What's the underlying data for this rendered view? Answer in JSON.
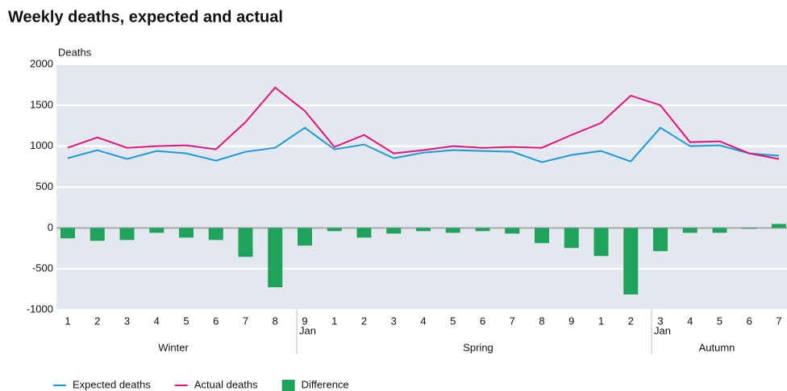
{
  "chart_data": {
    "type": "line-bar",
    "title": "Weekly deaths, expected and actual",
    "unit_label": "Deaths",
    "categories": [
      "1",
      "2",
      "3",
      "4",
      "5",
      "6",
      "7",
      "8",
      "9",
      "1",
      "2",
      "3",
      "4",
      "5",
      "6",
      "7",
      "8",
      "9",
      "1",
      "2",
      "3",
      "4",
      "5",
      "6",
      "7"
    ],
    "group_labels": [
      "Winter",
      "Spring",
      "Autumn"
    ],
    "annotations": [
      "Jan",
      "Jan"
    ],
    "ylim": [
      -1000,
      2000
    ],
    "yticks": [
      -1000,
      -500,
      0,
      500,
      1000,
      1500,
      2000
    ],
    "grid": true,
    "series": [
      {
        "name": "Expected deaths",
        "color": "#1a9ad6",
        "kind": "line",
        "values": [
          853,
          951,
          843,
          941,
          912,
          823,
          931,
          980,
          1225,
          961,
          1020,
          853,
          921,
          951,
          941,
          931,
          804,
          892,
          941,
          813,
          1225,
          1000,
          1010,
          912,
          882
        ]
      },
      {
        "name": "Actual deaths",
        "color": "#e0157a",
        "kind": "line",
        "values": [
          980,
          1107,
          980,
          1000,
          1010,
          961,
          1294,
          1716,
          1431,
          990,
          1137,
          912,
          951,
          1000,
          980,
          990,
          980,
          1137,
          1284,
          1618,
          1500,
          1049,
          1059,
          912,
          843
        ]
      },
      {
        "name": "Difference",
        "color": "#1fa35c",
        "kind": "bar",
        "values": [
          -127,
          -157,
          -147,
          -59,
          -118,
          -147,
          -353,
          -725,
          -216,
          -39,
          -118,
          -69,
          -39,
          -59,
          -39,
          -69,
          -186,
          -245,
          -343,
          -813,
          -284,
          -59,
          -59,
          -10,
          49
        ]
      }
    ]
  }
}
